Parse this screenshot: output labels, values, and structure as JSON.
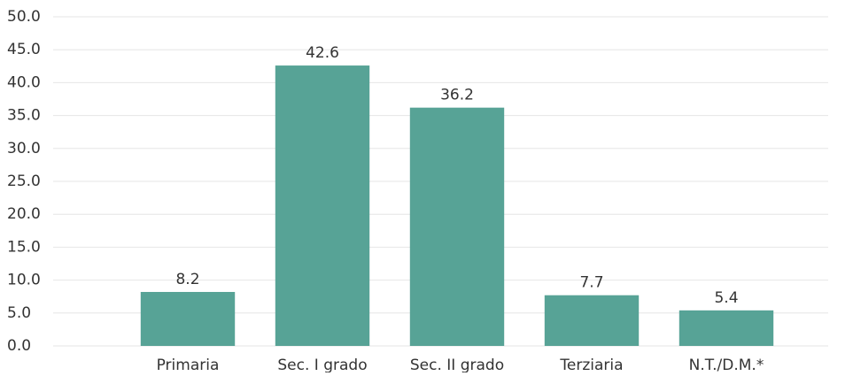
{
  "chart_data": {
    "type": "bar",
    "categories": [
      "Primaria",
      "Sec. I grado",
      "Sec. II grado",
      "Terziaria",
      "N.T./D.M.*"
    ],
    "values": [
      8.2,
      42.6,
      36.2,
      7.7,
      5.4
    ],
    "color": "#57a396",
    "ylim": [
      0,
      50
    ],
    "yticks": [
      {
        "value": 0,
        "label": "0.0"
      },
      {
        "value": 5,
        "label": "5.0"
      },
      {
        "value": 10,
        "label": "10.0"
      },
      {
        "value": 15,
        "label": "15.0"
      },
      {
        "value": 20,
        "label": "20.0"
      },
      {
        "value": 25,
        "label": "25.0"
      },
      {
        "value": 30,
        "label": "30.0"
      },
      {
        "value": 35,
        "label": "35.0"
      },
      {
        "value": 40,
        "label": "40.0"
      },
      {
        "value": 45,
        "label": "45.0"
      },
      {
        "value": 50,
        "label": "50.0"
      }
    ],
    "grid": true
  }
}
